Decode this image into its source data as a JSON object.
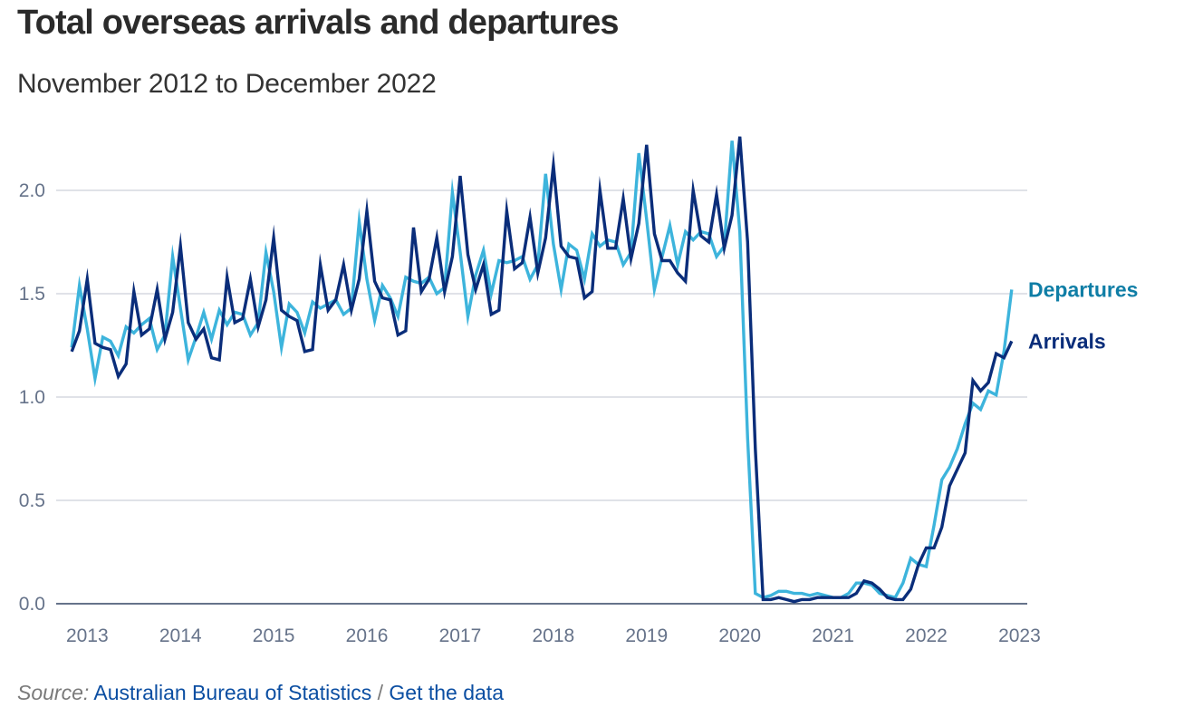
{
  "header": {
    "title": "Total overseas arrivals and departures",
    "subtitle": "November 2012 to December 2022"
  },
  "footer": {
    "source_lead": "Source:",
    "source_link": "Australian Bureau of Statistics",
    "separator": "/",
    "data_link": "Get the data"
  },
  "colors": {
    "departures": "#3db4dc",
    "arrivals": "#0a2d7a",
    "departures_label": "#0f7ea6",
    "arrivals_label": "#0a2d7a",
    "grid": "#d5d9e0",
    "baseline": "#66738a",
    "tick_text": "#66738a"
  },
  "chart_data": {
    "type": "line",
    "title": "Total overseas arrivals and departures",
    "subtitle": "November 2012 to December 2022",
    "xlabel": "",
    "ylabel": "",
    "start": "2012-11",
    "frequency": "monthly",
    "x_ticks": [
      "2013",
      "2014",
      "2015",
      "2016",
      "2017",
      "2018",
      "2019",
      "2020",
      "2021",
      "2022",
      "2023"
    ],
    "y_ticks": [
      "0.0",
      "0.5",
      "1.0",
      "1.5",
      "2.0"
    ],
    "ylim": [
      0,
      2.3
    ],
    "xlim": [
      "2012-09",
      "2023-02"
    ],
    "grid": true,
    "legend": "inline-right",
    "series": [
      {
        "name": "Departures",
        "values": [
          1.24,
          1.54,
          1.33,
          1.09,
          1.29,
          1.27,
          1.2,
          1.34,
          1.31,
          1.35,
          1.38,
          1.23,
          1.3,
          1.68,
          1.43,
          1.18,
          1.29,
          1.41,
          1.28,
          1.42,
          1.35,
          1.41,
          1.4,
          1.3,
          1.36,
          1.7,
          1.51,
          1.24,
          1.45,
          1.41,
          1.31,
          1.46,
          1.43,
          1.45,
          1.47,
          1.4,
          1.43,
          1.85,
          1.57,
          1.37,
          1.54,
          1.48,
          1.39,
          1.58,
          1.56,
          1.55,
          1.58,
          1.5,
          1.53,
          1.99,
          1.7,
          1.39,
          1.59,
          1.71,
          1.5,
          1.66,
          1.65,
          1.66,
          1.68,
          1.57,
          1.64,
          2.08,
          1.74,
          1.52,
          1.74,
          1.71,
          1.57,
          1.79,
          1.73,
          1.76,
          1.75,
          1.64,
          1.7,
          2.18,
          1.86,
          1.52,
          1.68,
          1.83,
          1.64,
          1.8,
          1.76,
          1.8,
          1.79,
          1.68,
          1.73,
          2.24,
          1.8,
          0.8,
          0.05,
          0.03,
          0.04,
          0.06,
          0.06,
          0.05,
          0.05,
          0.04,
          0.05,
          0.04,
          0.03,
          0.03,
          0.05,
          0.1,
          0.1,
          0.09,
          0.05,
          0.04,
          0.03,
          0.1,
          0.22,
          0.19,
          0.18,
          0.38,
          0.6,
          0.66,
          0.75,
          0.87,
          0.97,
          0.94,
          1.03,
          1.01,
          1.22,
          1.52
        ]
      },
      {
        "name": "Arrivals",
        "values": [
          1.22,
          1.32,
          1.57,
          1.26,
          1.24,
          1.23,
          1.1,
          1.16,
          1.51,
          1.3,
          1.33,
          1.52,
          1.28,
          1.41,
          1.73,
          1.36,
          1.28,
          1.33,
          1.19,
          1.18,
          1.58,
          1.36,
          1.38,
          1.57,
          1.34,
          1.47,
          1.77,
          1.42,
          1.39,
          1.37,
          1.22,
          1.23,
          1.64,
          1.42,
          1.47,
          1.64,
          1.42,
          1.57,
          1.9,
          1.56,
          1.48,
          1.47,
          1.3,
          1.32,
          1.82,
          1.51,
          1.57,
          1.77,
          1.51,
          1.68,
          2.07,
          1.69,
          1.52,
          1.64,
          1.4,
          1.42,
          1.9,
          1.62,
          1.65,
          1.87,
          1.6,
          1.77,
          2.12,
          1.73,
          1.68,
          1.67,
          1.48,
          1.51,
          2.0,
          1.72,
          1.72,
          1.96,
          1.67,
          1.84,
          2.22,
          1.79,
          1.66,
          1.66,
          1.6,
          1.56,
          2.0,
          1.78,
          1.75,
          1.98,
          1.72,
          1.88,
          2.26,
          1.75,
          0.75,
          0.02,
          0.02,
          0.03,
          0.02,
          0.01,
          0.02,
          0.02,
          0.03,
          0.03,
          0.03,
          0.03,
          0.03,
          0.05,
          0.11,
          0.1,
          0.07,
          0.03,
          0.02,
          0.02,
          0.07,
          0.19,
          0.27,
          0.27,
          0.37,
          0.57,
          0.65,
          0.73,
          1.08,
          1.03,
          1.07,
          1.21,
          1.19,
          1.27
        ]
      }
    ]
  }
}
